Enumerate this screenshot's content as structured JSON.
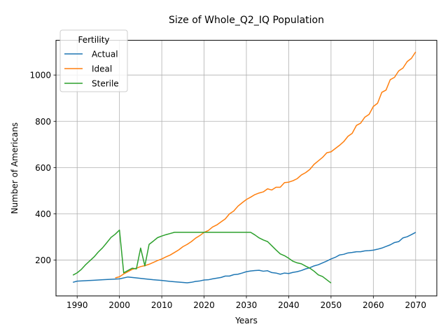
{
  "chart_data": {
    "type": "line",
    "title": "Size of Whole_Q2_IQ Population",
    "xlabel": "Years",
    "ylabel": "Number of Americans",
    "xlim": [
      1985,
      2075
    ],
    "ylim": [
      45,
      1150
    ],
    "xticks": [
      1990,
      2000,
      2010,
      2020,
      2030,
      2040,
      2050,
      2060,
      2070
    ],
    "yticks": [
      200,
      400,
      600,
      800,
      1000
    ],
    "grid": true,
    "legend": {
      "title": "Fertility",
      "position": "top-left"
    },
    "series": [
      {
        "name": "Actual",
        "color": "#1f77b4",
        "x": [
          1989,
          1990,
          1992,
          1994,
          1996,
          1998,
          2000,
          2002,
          2004,
          2006,
          2008,
          2010,
          2012,
          2014,
          2016,
          2017,
          2018,
          2019,
          2020,
          2021,
          2022,
          2023,
          2024,
          2025,
          2026,
          2027,
          2028,
          2029,
          2030,
          2031,
          2032,
          2033,
          2034,
          2035,
          2036,
          2037,
          2038,
          2039,
          2040,
          2041,
          2042,
          2043,
          2044,
          2045,
          2046,
          2047,
          2048,
          2049,
          2050,
          2051,
          2052,
          2053,
          2054,
          2055,
          2056,
          2057,
          2058,
          2059,
          2060,
          2061,
          2062,
          2063,
          2064,
          2065,
          2066,
          2067,
          2068,
          2069,
          2070
        ],
        "values": [
          104,
          109,
          111,
          113,
          115,
          117,
          119,
          127,
          123,
          119,
          115,
          112,
          108,
          105,
          102,
          104,
          108,
          110,
          114,
          115,
          119,
          122,
          125,
          131,
          131,
          137,
          139,
          144,
          150,
          153,
          155,
          156,
          152,
          154,
          146,
          144,
          139,
          144,
          142,
          147,
          150,
          155,
          162,
          167,
          175,
          180,
          188,
          196,
          205,
          212,
          222,
          225,
          231,
          233,
          236,
          236,
          240,
          241,
          243,
          247,
          252,
          259,
          266,
          276,
          280,
          296,
          301,
          310,
          320
        ]
      },
      {
        "name": "Ideal",
        "color": "#ff7f0e",
        "x": [
          1999,
          2000,
          2001,
          2002,
          2003,
          2004,
          2005,
          2006,
          2007,
          2008,
          2009,
          2010,
          2011,
          2012,
          2013,
          2014,
          2015,
          2016,
          2017,
          2018,
          2019,
          2020,
          2021,
          2022,
          2023,
          2024,
          2025,
          2026,
          2027,
          2028,
          2029,
          2030,
          2031,
          2032,
          2033,
          2034,
          2035,
          2036,
          2037,
          2038,
          2039,
          2040,
          2041,
          2042,
          2043,
          2044,
          2045,
          2046,
          2047,
          2048,
          2049,
          2050,
          2051,
          2052,
          2053,
          2054,
          2055,
          2056,
          2057,
          2058,
          2059,
          2060,
          2061,
          2062,
          2063,
          2064,
          2065,
          2066,
          2067,
          2068,
          2069,
          2070
        ],
        "values": [
          123,
          128,
          140,
          150,
          160,
          165,
          172,
          176,
          182,
          190,
          198,
          205,
          214,
          222,
          233,
          244,
          258,
          268,
          280,
          295,
          306,
          320,
          328,
          343,
          352,
          365,
          378,
          400,
          412,
          433,
          448,
          462,
          472,
          483,
          490,
          495,
          508,
          503,
          515,
          515,
          535,
          537,
          543,
          552,
          568,
          578,
          592,
          614,
          629,
          644,
          664,
          668,
          682,
          696,
          712,
          735,
          748,
          782,
          792,
          818,
          830,
          864,
          878,
          925,
          935,
          980,
          990,
          1018,
          1030,
          1058,
          1072,
          1100
        ]
      },
      {
        "name": "Sterile",
        "color": "#2ca02c",
        "x": [
          1989,
          1990,
          1991,
          1992,
          1993,
          1994,
          1995,
          1996,
          1997,
          1998,
          1999,
          2000,
          2001,
          2002,
          2003,
          2004,
          2005,
          2006,
          2007,
          2008,
          2009,
          2010,
          2011,
          2012,
          2013,
          2014,
          2015,
          2016,
          2017,
          2018,
          2019,
          2020,
          2021,
          2022,
          2023,
          2024,
          2025,
          2026,
          2027,
          2028,
          2029,
          2030,
          2031,
          2032,
          2033,
          2034,
          2035,
          2036,
          2037,
          2038,
          2039,
          2040,
          2041,
          2042,
          2043,
          2044,
          2045,
          2046,
          2047,
          2048,
          2049,
          2050
        ],
        "values": [
          135,
          145,
          160,
          180,
          197,
          214,
          235,
          253,
          275,
          298,
          312,
          330,
          145,
          155,
          165,
          162,
          252,
          175,
          268,
          282,
          297,
          304,
          310,
          315,
          320,
          320,
          320,
          320,
          320,
          320,
          320,
          320,
          320,
          320,
          320,
          320,
          320,
          320,
          320,
          320,
          320,
          320,
          320,
          309,
          296,
          287,
          280,
          262,
          244,
          227,
          219,
          208,
          195,
          188,
          184,
          174,
          165,
          152,
          136,
          129,
          115,
          101
        ]
      }
    ]
  }
}
